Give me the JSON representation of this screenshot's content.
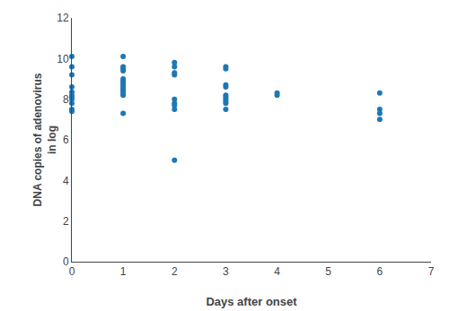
{
  "chart_data": {
    "type": "scatter",
    "xlabel": "Days after onset",
    "ylabel": "DNA copies of adenovirus\nin log",
    "x": [
      0,
      0,
      0,
      0,
      0,
      0,
      0,
      0,
      0,
      0,
      0,
      1,
      1,
      1,
      1,
      1,
      1,
      1,
      1,
      1,
      1,
      1,
      1,
      1,
      1,
      2,
      2,
      2,
      2,
      2,
      2,
      2,
      2,
      2,
      3,
      3,
      3,
      3,
      3,
      3,
      3,
      3,
      3,
      3,
      4,
      4,
      6,
      6,
      6,
      6
    ],
    "values": [
      10.1,
      9.6,
      9.2,
      8.6,
      8.35,
      8.2,
      8.1,
      8.0,
      7.8,
      7.5,
      7.4,
      10.1,
      9.6,
      9.5,
      9.4,
      9.0,
      8.9,
      8.8,
      8.7,
      8.6,
      8.5,
      8.4,
      8.3,
      8.2,
      7.3,
      9.8,
      9.6,
      9.3,
      9.2,
      8.0,
      7.8,
      7.7,
      7.5,
      5.0,
      9.6,
      9.5,
      8.7,
      8.6,
      8.2,
      8.1,
      8.0,
      7.9,
      7.8,
      7.5,
      8.3,
      8.2,
      8.3,
      7.5,
      7.3,
      7.0
    ],
    "xlim": [
      0,
      7
    ],
    "ylim": [
      0,
      12
    ],
    "xticks": [
      0,
      1,
      2,
      3,
      4,
      5,
      6,
      7
    ],
    "yticks": [
      0,
      2,
      4,
      6,
      8,
      10,
      12
    ],
    "grid": false
  }
}
